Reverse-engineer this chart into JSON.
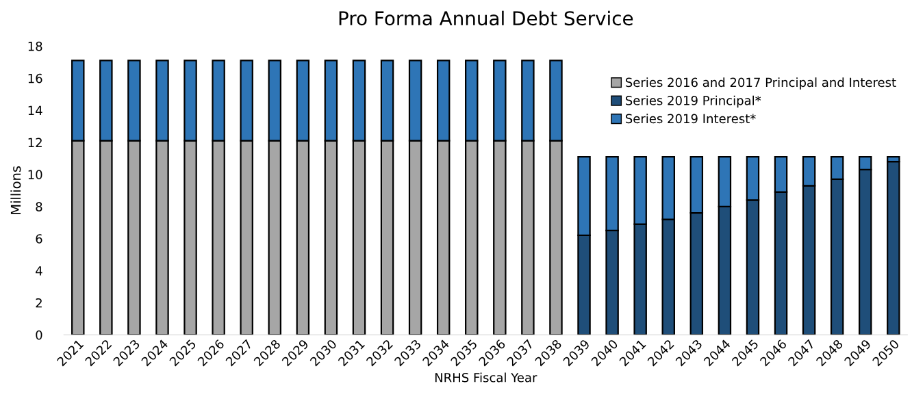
{
  "chart_data": {
    "type": "bar",
    "title": "Pro Forma Annual Debt Service",
    "xlabel": "NRHS Fiscal Year",
    "ylabel": "Millions",
    "categories": [
      "2021",
      "2022",
      "2023",
      "2024",
      "2025",
      "2026",
      "2027",
      "2028",
      "2029",
      "2030",
      "2031",
      "2032",
      "2033",
      "2034",
      "2035",
      "2036",
      "2037",
      "2038",
      "2039",
      "2040",
      "2041",
      "2042",
      "2043",
      "2044",
      "2045",
      "2046",
      "2047",
      "2048",
      "2049",
      "2050"
    ],
    "stacked": true,
    "series": [
      {
        "name": "Series 2016 and 2017 Principal and Interest",
        "color": "#a6a6a6",
        "values": [
          12.1,
          12.1,
          12.1,
          12.1,
          12.1,
          12.1,
          12.1,
          12.1,
          12.1,
          12.1,
          12.1,
          12.1,
          12.1,
          12.1,
          12.1,
          12.1,
          12.1,
          12.1,
          null,
          null,
          null,
          null,
          null,
          null,
          null,
          null,
          null,
          null,
          null,
          null
        ]
      },
      {
        "name": "Series 2019 Principal*",
        "color": "#1f4e79",
        "values": [
          null,
          null,
          null,
          null,
          null,
          null,
          null,
          null,
          null,
          null,
          null,
          null,
          null,
          null,
          null,
          null,
          null,
          null,
          6.2,
          6.5,
          6.9,
          7.2,
          7.6,
          8.0,
          8.4,
          8.9,
          9.3,
          9.7,
          10.3,
          10.8
        ]
      },
      {
        "name": "Series 2019 Interest*",
        "color": "#2e75b6",
        "values": [
          5.0,
          5.0,
          5.0,
          5.0,
          5.0,
          5.0,
          5.0,
          5.0,
          5.0,
          5.0,
          5.0,
          5.0,
          5.0,
          5.0,
          5.0,
          5.0,
          5.0,
          5.0,
          4.9,
          4.6,
          4.2,
          3.9,
          3.5,
          3.1,
          2.7,
          2.2,
          1.8,
          1.4,
          0.8,
          0.3
        ]
      }
    ],
    "ylim": [
      0,
      18
    ],
    "yticks": [
      0,
      2,
      4,
      6,
      8,
      10,
      12,
      14,
      16,
      18
    ],
    "grid": false,
    "legend": "top right"
  }
}
